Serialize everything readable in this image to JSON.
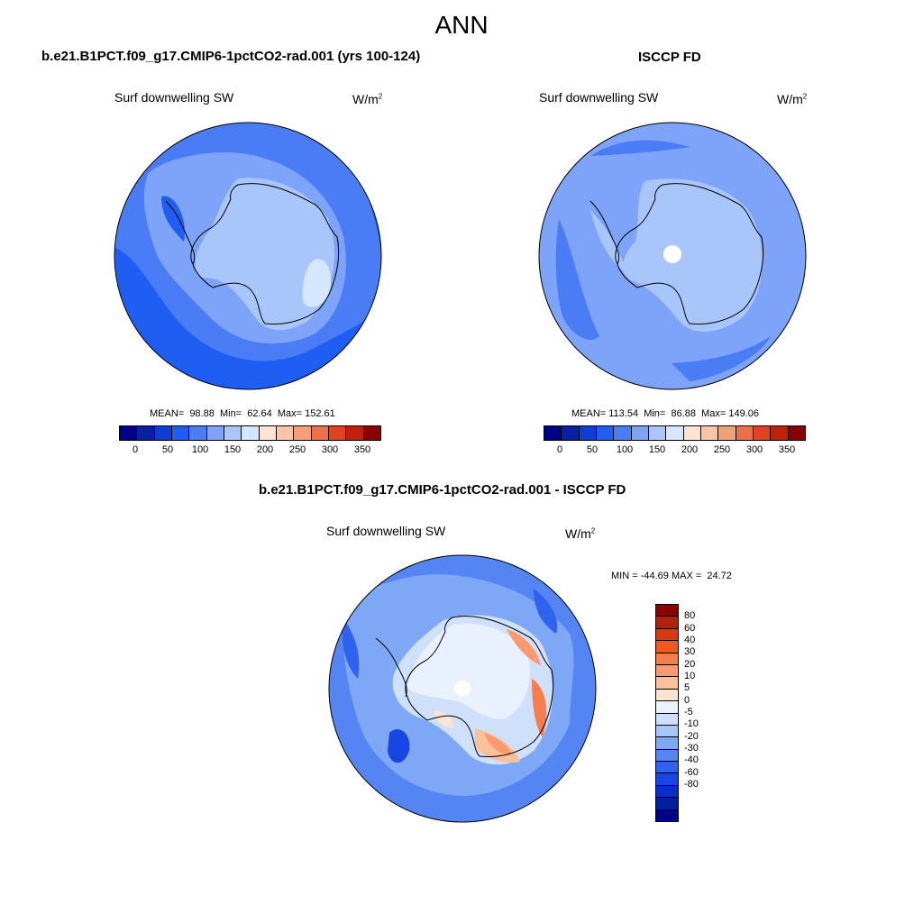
{
  "main_title": "ANN",
  "units_base": "W/m",
  "units_exp": "2",
  "panels": {
    "model": {
      "title": "b.e21.B1PCT.f09_g17.CMIP6-1pctCO2-rad.001 (yrs 100-124)",
      "variable": "Surf downwelling SW",
      "stats": "MEAN=  98.88  Min=  62.64  Max= 152.61"
    },
    "obs": {
      "title": "ISCCP FD",
      "variable": "Surf downwelling SW",
      "stats": "MEAN= 113.54  Min=  86.88  Max= 149.06"
    },
    "diff": {
      "title": "b.e21.B1PCT.f09_g17.CMIP6-1pctCO2-rad.001 - ISCCP FD",
      "variable": "Surf downwelling SW",
      "stats": "MIN = -44.69 MAX =  24.72"
    }
  },
  "abs_colorbar": {
    "colors": [
      "#00008b",
      "#0a1fa8",
      "#0d3fd8",
      "#1f5ef2",
      "#4a7df5",
      "#7da4f8",
      "#a9c6fb",
      "#d6e6fd",
      "#fde3d2",
      "#fac4a6",
      "#f59f78",
      "#ee6f4a",
      "#e2421f",
      "#c2200b",
      "#8b0000"
    ],
    "tick_labels": [
      "0",
      "50",
      "100",
      "150",
      "200",
      "250",
      "300",
      "350"
    ]
  },
  "diff_colorbar": {
    "colors": [
      "#8b0000",
      "#b0230a",
      "#d73912",
      "#f0581e",
      "#f77d4c",
      "#fa9a6e",
      "#fcc09a",
      "#fde4cf",
      "#e8f1fd",
      "#cfe0fb",
      "#a8c6f8",
      "#7ea7f5",
      "#5585f2",
      "#2f63ee",
      "#1846e4",
      "#0a2fc8",
      "#0020a0",
      "#00008b"
    ],
    "tick_labels": [
      "80",
      "60",
      "40",
      "30",
      "20",
      "10",
      "5",
      "0",
      "-5",
      "-10",
      "-20",
      "-30",
      "-40",
      "-60",
      "-80"
    ]
  }
}
